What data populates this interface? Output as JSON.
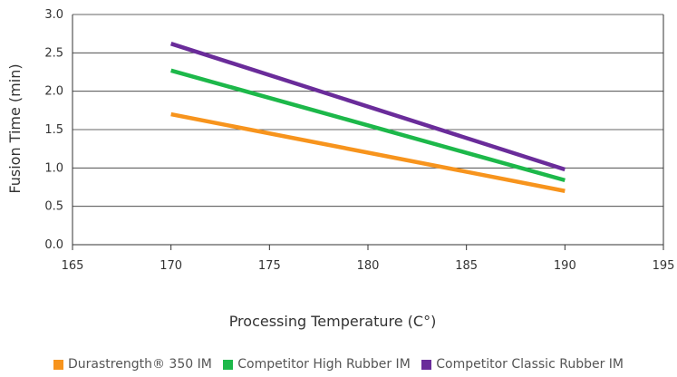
{
  "chart_data": {
    "type": "line",
    "xlabel": "Processing Temperature (C°)",
    "ylabel": "Fusion Time (min)",
    "xlim": [
      165,
      195
    ],
    "ylim": [
      0.0,
      3.0
    ],
    "x_ticks": [
      "165",
      "170",
      "175",
      "180",
      "185",
      "190",
      "195"
    ],
    "y_ticks": [
      "0.0",
      "0.5",
      "1.0",
      "1.5",
      "2.0",
      "2.5",
      "3.0"
    ],
    "grid": "horizontal",
    "legend_position": "bottom",
    "series": [
      {
        "name": "Durastrength® 350 IM",
        "color": "#f7941d",
        "x": [
          170,
          190
        ],
        "y": [
          1.7,
          0.7
        ]
      },
      {
        "name": "Competitor High Rubber IM",
        "color": "#1db84a",
        "x": [
          170,
          190
        ],
        "y": [
          2.27,
          0.84
        ]
      },
      {
        "name": "Competitor Classic Rubber IM",
        "color": "#6a2c9a",
        "x": [
          170,
          190
        ],
        "y": [
          2.62,
          0.98
        ]
      }
    ]
  }
}
